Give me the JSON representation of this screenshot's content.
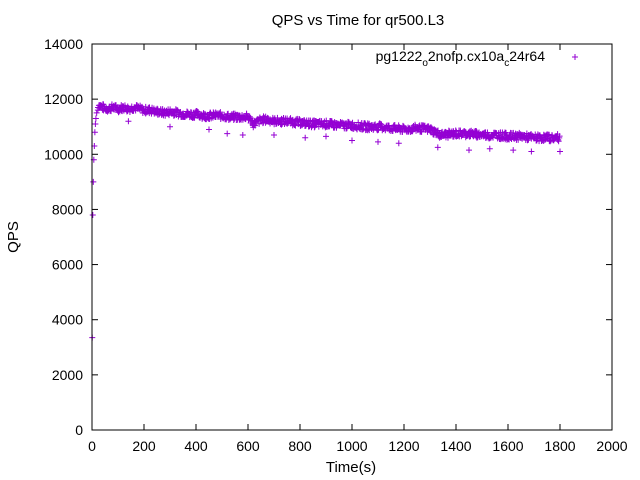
{
  "chart_data": {
    "type": "scatter",
    "title": "QPS vs Time for qr500.L3",
    "xlabel": "Time(s)",
    "ylabel": "QPS",
    "xlim": [
      0,
      2000
    ],
    "ylim": [
      0,
      14000
    ],
    "x_ticks": [
      "0",
      "200",
      "400",
      "600",
      "800",
      "1000",
      "1200",
      "1400",
      "1600",
      "1800",
      "2000"
    ],
    "y_ticks": [
      "0",
      "2000",
      "4000",
      "6000",
      "8000",
      "10000",
      "12000",
      "14000"
    ],
    "grid": false,
    "legend_position": "top-right",
    "marker": "plus",
    "series": [
      {
        "name": "pg1222_o2nofp.cx10a_c24r64",
        "name_parts": [
          "pg1222",
          "o",
          "2nofp.cx10a",
          "c",
          "24r64"
        ],
        "color": "#9400d3",
        "points": [
          [
            1,
            3350
          ],
          [
            3,
            7800
          ],
          [
            5,
            9000
          ],
          [
            7,
            9800
          ],
          [
            9,
            10300
          ],
          [
            11,
            10800
          ],
          [
            13,
            11100
          ],
          [
            15,
            11300
          ],
          [
            18,
            11500
          ],
          [
            22,
            11700
          ],
          [
            26,
            11800
          ],
          [
            30,
            11750
          ],
          [
            40,
            11700
          ],
          [
            60,
            11650
          ],
          [
            80,
            11700
          ],
          [
            100,
            11650
          ],
          [
            120,
            11700
          ],
          [
            140,
            11650
          ],
          [
            160,
            11700
          ],
          [
            180,
            11650
          ],
          [
            200,
            11600
          ],
          [
            220,
            11600
          ],
          [
            250,
            11550
          ],
          [
            280,
            11500
          ],
          [
            300,
            11550
          ],
          [
            330,
            11500
          ],
          [
            360,
            11450
          ],
          [
            400,
            11450
          ],
          [
            430,
            11400
          ],
          [
            460,
            11400
          ],
          [
            500,
            11400
          ],
          [
            530,
            11350
          ],
          [
            560,
            11350
          ],
          [
            600,
            11350
          ],
          [
            620,
            11100
          ],
          [
            650,
            11250
          ],
          [
            680,
            11250
          ],
          [
            700,
            11200
          ],
          [
            750,
            11200
          ],
          [
            800,
            11150
          ],
          [
            850,
            11100
          ],
          [
            900,
            11100
          ],
          [
            950,
            11050
          ],
          [
            1000,
            11050
          ],
          [
            1050,
            11000
          ],
          [
            1100,
            11000
          ],
          [
            1150,
            10950
          ],
          [
            1200,
            10900
          ],
          [
            1250,
            10950
          ],
          [
            1300,
            10900
          ],
          [
            1340,
            10700
          ],
          [
            1400,
            10750
          ],
          [
            1450,
            10750
          ],
          [
            1500,
            10700
          ],
          [
            1550,
            10700
          ],
          [
            1600,
            10650
          ],
          [
            1650,
            10650
          ],
          [
            1700,
            10600
          ],
          [
            1750,
            10600
          ],
          [
            1800,
            10600
          ]
        ],
        "low_outliers": [
          [
            140,
            11200
          ],
          [
            300,
            11000
          ],
          [
            450,
            10900
          ],
          [
            520,
            10750
          ],
          [
            580,
            10700
          ],
          [
            700,
            10700
          ],
          [
            820,
            10600
          ],
          [
            900,
            10650
          ],
          [
            1000,
            10500
          ],
          [
            1100,
            10450
          ],
          [
            1180,
            10400
          ],
          [
            1330,
            10250
          ],
          [
            1450,
            10150
          ],
          [
            1530,
            10200
          ],
          [
            1620,
            10150
          ],
          [
            1690,
            10100
          ],
          [
            1800,
            10100
          ]
        ]
      }
    ]
  }
}
